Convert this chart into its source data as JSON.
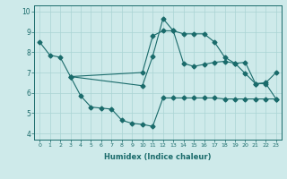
{
  "xlabel": "Humidex (Indice chaleur)",
  "background_color": "#ceeaea",
  "grid_color": "#aad4d4",
  "line_color": "#1a6b6b",
  "xlim": [
    -0.5,
    23.5
  ],
  "ylim": [
    3.7,
    10.3
  ],
  "xticks": [
    0,
    1,
    2,
    3,
    4,
    5,
    6,
    7,
    8,
    9,
    10,
    11,
    12,
    13,
    14,
    15,
    16,
    17,
    18,
    19,
    20,
    21,
    22,
    23
  ],
  "yticks": [
    4,
    5,
    6,
    7,
    8,
    9,
    10
  ],
  "line1_x": [
    0,
    1,
    2,
    3,
    10,
    11,
    12,
    13,
    14,
    15,
    16,
    17,
    18,
    19,
    20,
    21,
    22,
    23
  ],
  "line1_y": [
    8.5,
    7.85,
    7.75,
    6.8,
    6.35,
    7.8,
    9.65,
    9.05,
    7.45,
    7.3,
    7.4,
    7.5,
    7.55,
    7.45,
    7.5,
    6.45,
    6.5,
    7.0
  ],
  "line2_x": [
    3,
    4,
    5,
    6,
    7,
    8,
    9,
    10,
    11,
    12,
    13,
    14,
    15,
    16,
    17,
    18,
    19,
    20,
    21,
    22,
    23
  ],
  "line2_y": [
    6.8,
    5.85,
    5.3,
    5.25,
    5.2,
    4.65,
    4.5,
    4.45,
    4.35,
    5.75,
    5.75,
    5.75,
    5.75,
    5.75,
    5.75,
    5.7,
    5.7,
    5.7,
    5.7,
    5.7,
    5.7
  ],
  "line3_x": [
    3,
    10,
    11,
    12,
    13,
    14,
    15,
    16,
    17,
    18,
    19,
    20,
    21,
    22,
    23
  ],
  "line3_y": [
    6.8,
    7.0,
    8.8,
    9.05,
    9.05,
    8.9,
    8.9,
    8.9,
    8.5,
    7.75,
    7.45,
    6.95,
    6.45,
    6.45,
    5.7
  ]
}
